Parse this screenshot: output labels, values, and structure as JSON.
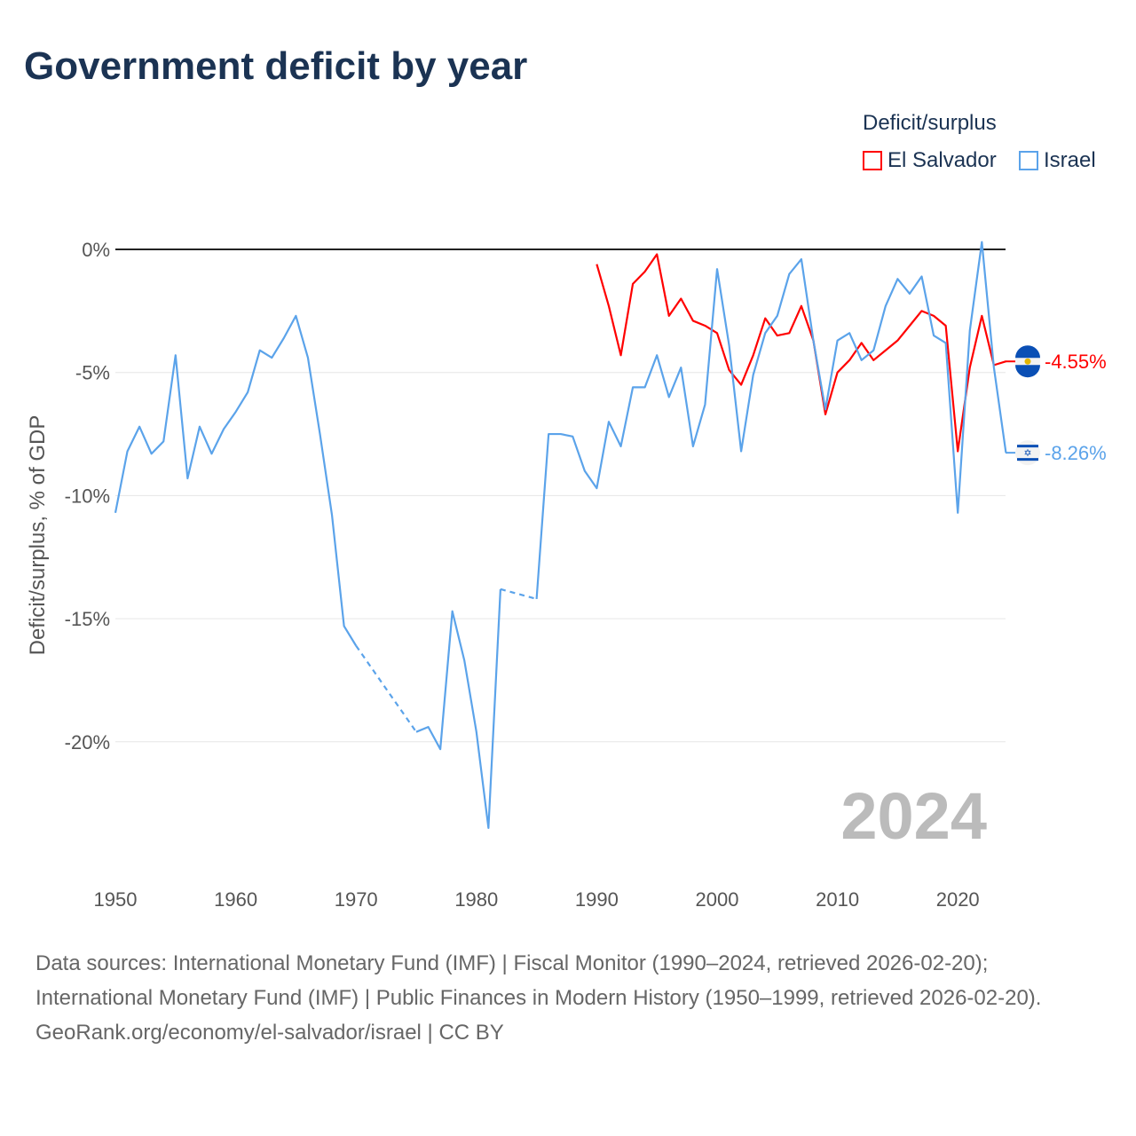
{
  "title": "Government deficit by year",
  "legend": {
    "title": "Deficit/surplus",
    "items": [
      {
        "name": "El Salvador",
        "color": "#ff0000"
      },
      {
        "name": "Israel",
        "color": "#5ba3ea"
      }
    ]
  },
  "year_label": "2024",
  "footer": {
    "sources": "Data sources: International Monetary Fund (IMF) | Fiscal Monitor (1990–2024, retrieved 2026-02-20); International Monetary Fund (IMF) | Public Finances in Modern History (1950–1999, retrieved 2026-02-20).",
    "credit": "GeoRank.org/economy/el-salvador/israel | CC BY"
  },
  "chart_data": {
    "type": "line",
    "title": "Government deficit by year",
    "ylabel": "Deficit/surplus, % of GDP",
    "xlabel": "",
    "xlim": [
      1950,
      2024
    ],
    "ylim": [
      -25,
      1
    ],
    "x_ticks": [
      1950,
      1960,
      1970,
      1980,
      1990,
      2000,
      2010,
      2020
    ],
    "x_tick_labels": [
      "1950",
      "1960",
      "1970",
      "1980",
      "1990",
      "2000",
      "2010",
      "2020"
    ],
    "y_ticks": [
      0,
      -5,
      -10,
      -15,
      -20
    ],
    "y_tick_labels": [
      "0%",
      "-5%",
      "-10%",
      "-15%",
      "-20%"
    ],
    "grid": true,
    "legend_position": "top-right",
    "end_labels": [
      "-4.55%",
      "-8.26%"
    ],
    "series": [
      {
        "name": "El Salvador",
        "color": "#ff0000",
        "start_year": 1990,
        "values": [
          -0.6,
          -2.3,
          -4.3,
          -1.4,
          -0.9,
          -0.2,
          -2.7,
          -2.0,
          -2.9,
          -3.1,
          -3.4,
          -4.9,
          -5.5,
          -4.3,
          -2.8,
          -3.5,
          -3.4,
          -2.3,
          -3.7,
          -6.7,
          -5.0,
          -4.5,
          -3.8,
          -4.5,
          -4.1,
          -3.7,
          -3.1,
          -2.5,
          -2.7,
          -3.1,
          -8.2,
          -4.8,
          -2.7,
          -4.7,
          -4.55
        ]
      },
      {
        "name": "Israel",
        "color": "#5ba3ea",
        "start_year": 1950,
        "values": [
          -10.7,
          -8.2,
          -7.2,
          -8.3,
          -7.8,
          -4.3,
          -9.3,
          -7.2,
          -8.3,
          -7.3,
          -6.6,
          -5.8,
          -4.1,
          -4.4,
          -3.6,
          -2.7,
          -4.4,
          -7.5,
          -10.8,
          -15.3,
          -16.1,
          null,
          null,
          null,
          null,
          -19.6,
          -19.4,
          -20.3,
          -14.7,
          -16.7,
          -19.6,
          -23.5,
          -13.8,
          null,
          null,
          -14.2,
          -7.5,
          -7.5,
          -7.6,
          -9.0,
          -9.7,
          -7.0,
          -8.0,
          -5.6,
          -5.6,
          -4.3,
          -6.0,
          -4.8,
          -8.0,
          -6.3,
          -0.8,
          -3.9,
          -8.2,
          -5.1,
          -3.4,
          -2.7,
          -1.0,
          -0.4,
          -3.7,
          -6.5,
          -3.7,
          -3.4,
          -4.5,
          -4.1,
          -2.3,
          -1.2,
          -1.8,
          -1.1,
          -3.5,
          -3.8,
          -10.7,
          -3.3,
          0.3,
          -4.8,
          -8.26
        ]
      }
    ]
  }
}
